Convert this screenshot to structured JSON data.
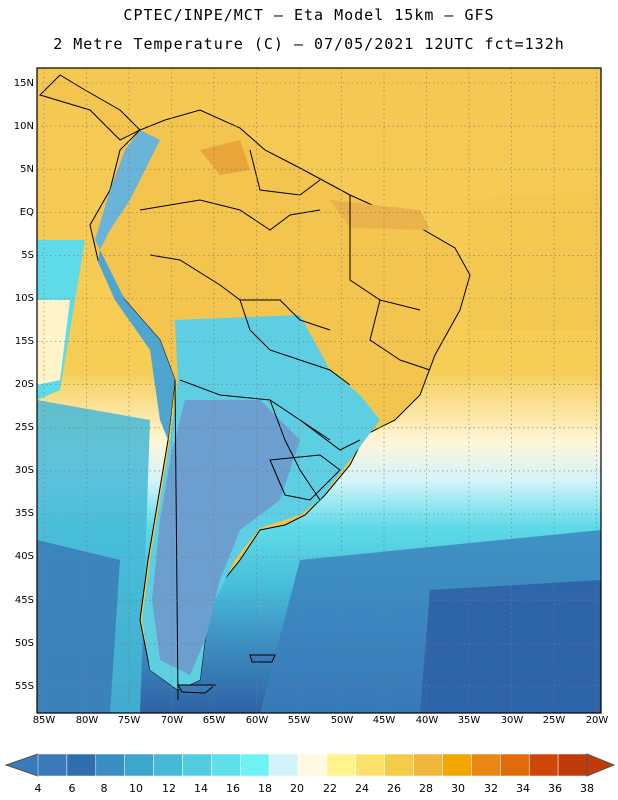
{
  "header": {
    "line1": "CPTEC/INPE/MCT –  Eta Model 15km – GFS",
    "line2": "2 Metre Temperature (C) – 07/05/2021 12UTC fct=132h"
  },
  "map": {
    "region": "South America",
    "lat_labels": [
      "15N",
      "10N",
      "5N",
      "EQ",
      "5S",
      "10S",
      "15S",
      "20S",
      "25S",
      "30S",
      "35S",
      "40S",
      "45S",
      "50S",
      "55S"
    ],
    "lon_labels": [
      "85W",
      "80W",
      "75W",
      "70W",
      "65W",
      "60W",
      "55W",
      "50W",
      "45W",
      "40W",
      "35W",
      "30W",
      "25W",
      "20W"
    ]
  },
  "colorbar": {
    "labels": [
      "4",
      "6",
      "8",
      "10",
      "12",
      "14",
      "16",
      "18",
      "20",
      "22",
      "24",
      "26",
      "28",
      "30",
      "32",
      "34",
      "36",
      "38"
    ],
    "colors": [
      "#3a7ab8",
      "#2f6fb0",
      "#3b8ec4",
      "#3da6cf",
      "#45b9d6",
      "#52cde0",
      "#5ee0ea",
      "#6ef2f5",
      "#d3f3fb",
      "#fff9e3",
      "#fff38c",
      "#fde06b",
      "#f6cb4c",
      "#f0b73a",
      "#f3a600",
      "#e98712",
      "#df6b0b",
      "#cf4708",
      "#c03a0a"
    ]
  },
  "colors": {
    "warm": "#f5c853",
    "hot": "#efa936",
    "pale": "#fff6d8",
    "cold_deep": "#2f63a6",
    "cold": "#3f93c7",
    "cyan": "#5bd8e6",
    "land": "#6d9ed0"
  }
}
